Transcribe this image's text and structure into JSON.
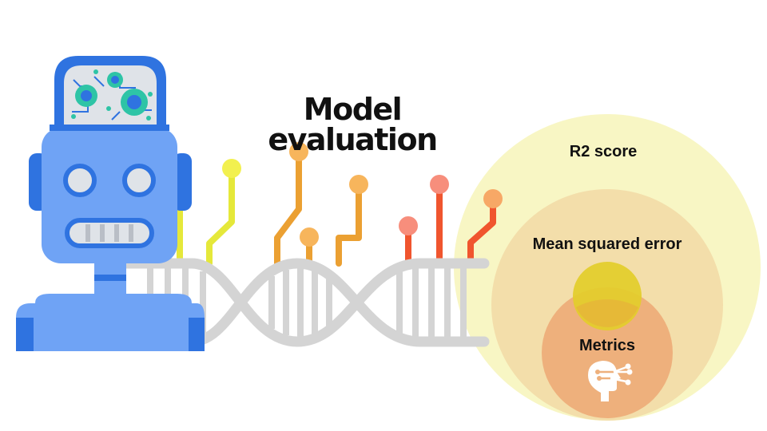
{
  "diagram": {
    "title": "Model evaluation",
    "circles": {
      "outer": "R2 score",
      "middle": "Mean squared error",
      "inner": "Metrics"
    },
    "icons": [
      "robot-icon",
      "dna-strand-icon",
      "ai-head-icon"
    ]
  },
  "colors": {
    "robot_body": "#6fa3f5",
    "robot_dark": "#2f73e0",
    "outer_circle": "#f8f6c4",
    "middle_circle": "#f3deaa",
    "inner_circle": "#eeb07c",
    "small_circle": "#e3cd2a",
    "dna_gray": "#d4d4d4"
  }
}
